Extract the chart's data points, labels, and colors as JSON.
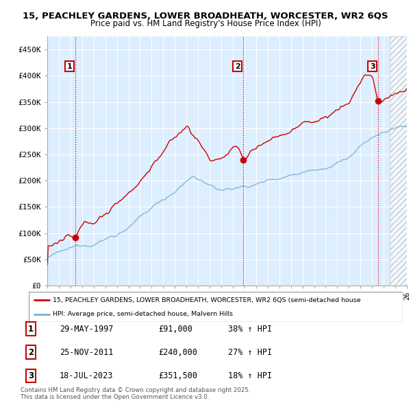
{
  "title_line1": "15, PEACHLEY GARDENS, LOWER BROADHEATH, WORCESTER, WR2 6QS",
  "title_line2": "Price paid vs. HM Land Registry's House Price Index (HPI)",
  "red_label": "15, PEACHLEY GARDENS, LOWER BROADHEATH, WORCESTER, WR2 6QS (semi-detached house",
  "blue_label": "HPI: Average price, semi-detached house, Malvern Hills",
  "footer": "Contains HM Land Registry data © Crown copyright and database right 2025.\nThis data is licensed under the Open Government Licence v3.0.",
  "sale_points": [
    {
      "num": 1,
      "date": "29-MAY-1997",
      "price": 91000,
      "hpi_pct": "38% ↑ HPI"
    },
    {
      "num": 2,
      "date": "25-NOV-2011",
      "price": 240000,
      "hpi_pct": "27% ↑ HPI"
    },
    {
      "num": 3,
      "date": "18-JUL-2023",
      "price": 351500,
      "hpi_pct": "18% ↑ HPI"
    }
  ],
  "sale_dates_decimal": [
    1997.41,
    2011.9,
    2023.54
  ],
  "sale_prices": [
    91000,
    240000,
    351500
  ],
  "vline_color": "#cc0000",
  "red_line_color": "#cc0000",
  "blue_line_color": "#7ab0d4",
  "chart_bg_color": "#ddeeff",
  "background_color": "#ffffff",
  "grid_color": "#aabbcc",
  "ylim": [
    0,
    475000
  ],
  "xlim_start": 1995.0,
  "xlim_end": 2026.0,
  "yticks": [
    0,
    50000,
    100000,
    150000,
    200000,
    250000,
    300000,
    350000,
    400000,
    450000
  ],
  "ytick_labels": [
    "£0",
    "£50K",
    "£100K",
    "£150K",
    "£200K",
    "£250K",
    "£300K",
    "£350K",
    "£400K",
    "£450K"
  ]
}
